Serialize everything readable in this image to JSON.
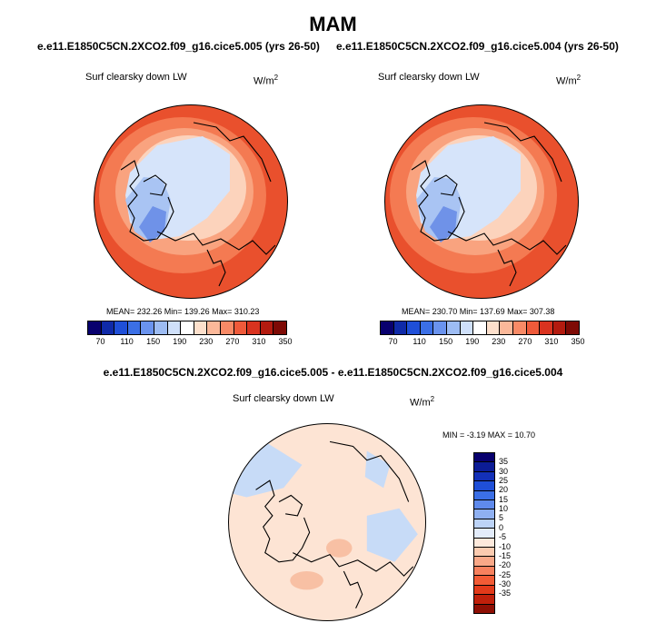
{
  "season": "MAM",
  "case1": "e.e11.E1850C5CN.2XCO2.f09_g16.cice5.005 (yrs 26-50)",
  "case2": "e.e11.E1850C5CN.2XCO2.f09_g16.cice5.004 (yrs 26-50)",
  "diff_title": "e.e11.E1850C5CN.2XCO2.f09_g16.cice5.005 - e.e11.E1850C5CN.2XCO2.f09_g16.cice5.004",
  "variable_label": "Surf clearsky down LW",
  "units_base": "W/m",
  "units_exp": "2",
  "panel1_stats": "MEAN= 232.26  Min= 139.26  Max= 310.23",
  "panel2_stats": "MEAN= 230.70  Min= 137.69  Max= 307.38",
  "diff_stats": "MIN =  -3.19 MAX =  10.70",
  "colors": {
    "abs_scale": [
      "#08006e",
      "#0f2aa8",
      "#1f4fd8",
      "#3b6fe6",
      "#6a93ee",
      "#9dbcf3",
      "#cfe0fa",
      "#ffffff",
      "#fde0cc",
      "#fbb899",
      "#f88a66",
      "#ef5a3a",
      "#d9331f",
      "#b31b0f",
      "#7e0a05"
    ],
    "diff_scale": [
      "#08006e",
      "#0c1c96",
      "#1330b8",
      "#1f4fd8",
      "#3b6fe6",
      "#5f8aec",
      "#8fb0f1",
      "#bcd3f7",
      "#e3ecfb",
      "#fde9dc",
      "#fbcbb0",
      "#f9a888",
      "#f7815e",
      "#f25b35",
      "#e23a1a",
      "#c0200b",
      "#8e0f04"
    ],
    "map_warm_outer": "#e9502d",
    "map_warm_mid": "#f47a52",
    "map_warm_light": "#f9a37f",
    "map_pale": "#fcd3bc",
    "map_cool_light": "#d6e4fa",
    "map_cool_mid": "#a9c4f3",
    "map_cool_dark": "#6f92e8",
    "diff_base": "#fde4d4",
    "diff_cool": "#c7dbf7",
    "diff_warm": "#f8c0a4"
  },
  "chart_data": [
    {
      "type": "heatmap",
      "title": "Surf clearsky down LW",
      "subtitle": "e.e11.E1850C5CN.2XCO2.f09_g16.cice5.005 (yrs 26-50)",
      "units": "W/m2",
      "projection": "north polar stereographic",
      "stats": {
        "mean": 232.26,
        "min": 139.26,
        "max": 310.23
      },
      "colorbar_levels": [
        70,
        110,
        150,
        190,
        230,
        270,
        310,
        350
      ],
      "colorbar_tick_labels": [
        "70",
        "110",
        "150",
        "190",
        "230",
        "270",
        "310",
        "350"
      ]
    },
    {
      "type": "heatmap",
      "title": "Surf clearsky down LW",
      "subtitle": "e.e11.E1850C5CN.2XCO2.f09_g16.cice5.004 (yrs 26-50)",
      "units": "W/m2",
      "projection": "north polar stereographic",
      "stats": {
        "mean": 230.7,
        "min": 137.69,
        "max": 307.38
      },
      "colorbar_levels": [
        70,
        110,
        150,
        190,
        230,
        270,
        310,
        350
      ],
      "colorbar_tick_labels": [
        "70",
        "110",
        "150",
        "190",
        "230",
        "270",
        "310",
        "350"
      ]
    },
    {
      "type": "heatmap",
      "title": "Surf clearsky down LW",
      "subtitle": "e.e11.E1850C5CN.2XCO2.f09_g16.cice5.005 - e.e11.E1850C5CN.2XCO2.f09_g16.cice5.004",
      "units": "W/m2",
      "projection": "north polar stereographic",
      "stats": {
        "min": -3.19,
        "max": 10.7
      },
      "colorbar_levels": [
        35,
        30,
        25,
        20,
        15,
        10,
        5,
        0,
        -5,
        -10,
        -15,
        -20,
        -25,
        -30,
        -35
      ],
      "colorbar_tick_labels": [
        "35",
        "30",
        "25",
        "20",
        "15",
        "10",
        "5",
        "0",
        "-5",
        "-10",
        "-15",
        "-20",
        "-25",
        "-30",
        "-35"
      ]
    }
  ]
}
